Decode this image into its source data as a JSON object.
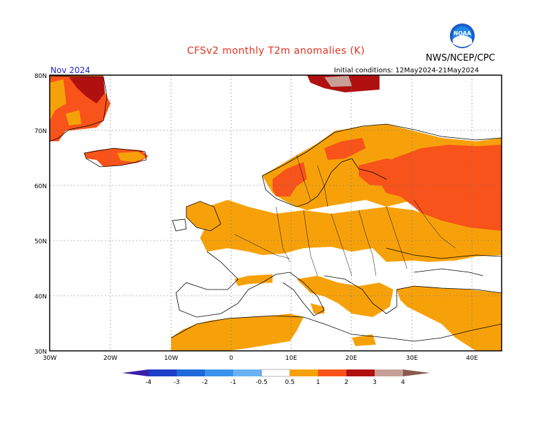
{
  "header": {
    "title": "CFSv2 monthly T2m anomalies (K)",
    "agency": "NWS/NCEP/CPC",
    "logo_text": "NOAA",
    "month": "Nov 2024",
    "initial_conditions": "Initial conditions: 12May2024-21May2024"
  },
  "map": {
    "region": "Europe",
    "lat_labels": [
      "80N",
      "70N",
      "60N",
      "50N",
      "40N",
      "30N"
    ],
    "lon_labels": [
      "30W",
      "20W",
      "10W",
      "0",
      "10E",
      "20E",
      "30E",
      "40E"
    ],
    "anomaly_regions": [
      {
        "name": "greenland-east",
        "category": "1-2 / 2-3"
      },
      {
        "name": "iceland",
        "category": "1-2"
      },
      {
        "name": "scandinavia",
        "category": "0.5-1 / 1-2"
      },
      {
        "name": "western-russia",
        "category": "1-2"
      },
      {
        "name": "western-europe",
        "category": "0.5-1"
      },
      {
        "name": "central-europe",
        "category": "0.5-1"
      },
      {
        "name": "balkans",
        "category": "0.5-1"
      },
      {
        "name": "turkey",
        "category": "0.5-1"
      },
      {
        "name": "north-africa",
        "category": "0.5-1"
      },
      {
        "name": "svalbard",
        "category": "2-3 / 3-4"
      }
    ]
  },
  "legend": {
    "labels": [
      "-4",
      "-3",
      "-2",
      "-1",
      "-0.5",
      "0.5",
      "1",
      "2",
      "3",
      "4"
    ],
    "colors": [
      "#3a1fa8",
      "#1f52c8",
      "#2a7ee0",
      "#4f9ff0",
      "#7dbcf8",
      "#ffffff",
      "#f7a10a",
      "#f7531a",
      "#b01010",
      "#c6a096",
      "#8a5a50"
    ]
  }
}
